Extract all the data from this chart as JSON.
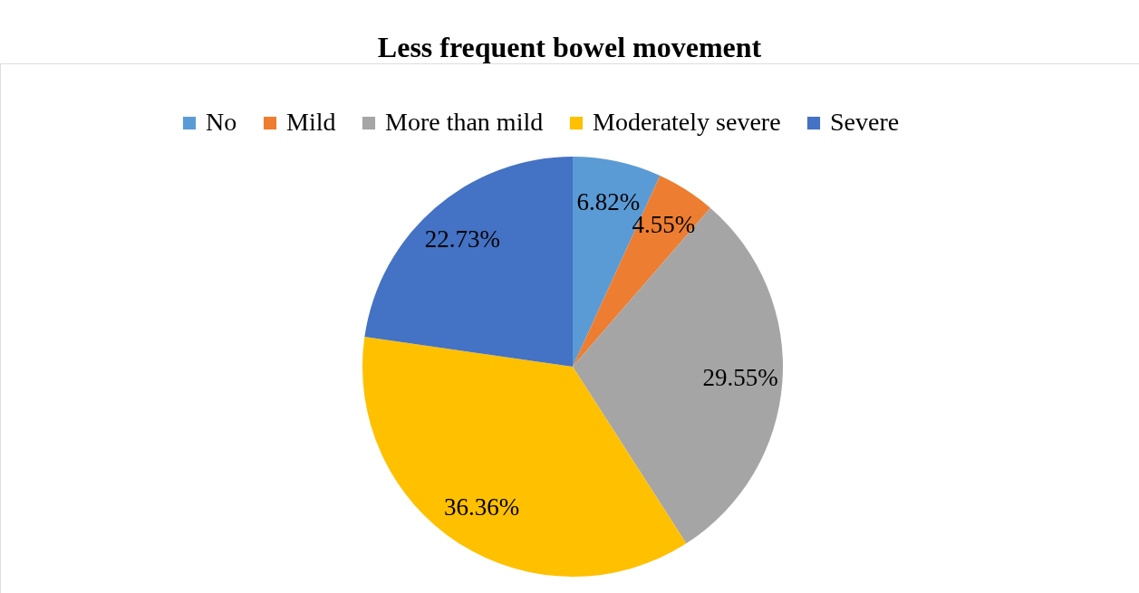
{
  "chart_data": {
    "type": "pie",
    "title": "Less frequent bowel movement",
    "categories": [
      "No",
      "Mild",
      "More than mild",
      "Moderately severe",
      "Severe"
    ],
    "values": [
      6.82,
      4.55,
      29.55,
      36.36,
      22.73
    ],
    "value_labels": [
      "6.82%",
      "4.55%",
      "29.55%",
      "36.36%",
      "22.73%"
    ],
    "colors": [
      "#5b9bd5",
      "#ed7d31",
      "#a5a5a5",
      "#ffc000",
      "#4472c4"
    ],
    "legend": "top"
  }
}
